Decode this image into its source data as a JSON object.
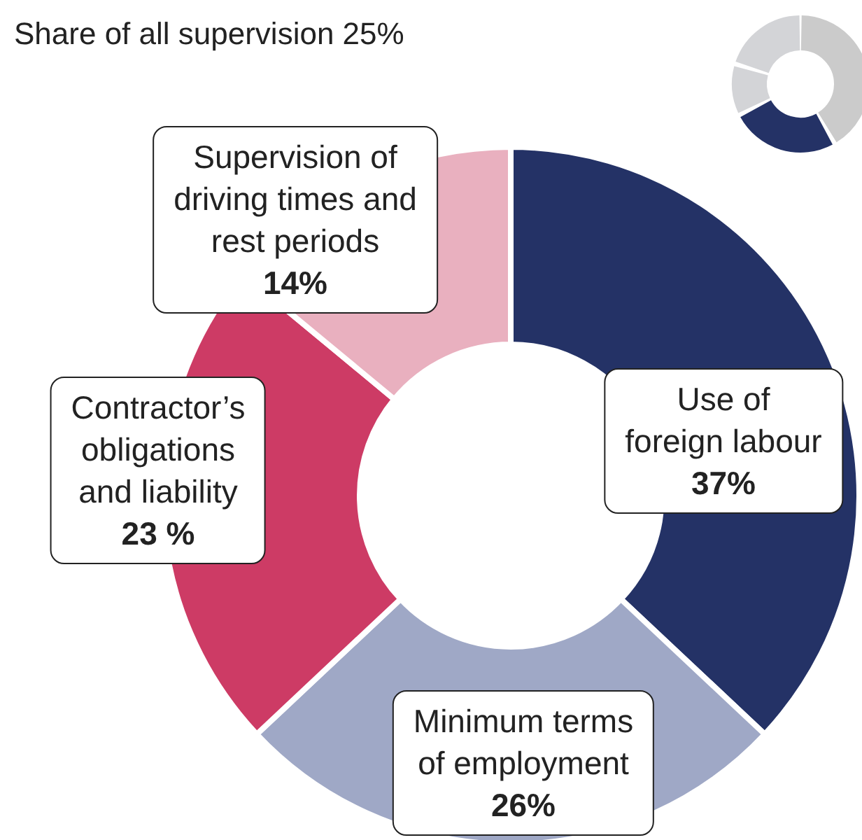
{
  "chart_data": {
    "type": "donut",
    "title": "Share of all supervision 25%",
    "categories": [
      "Use of\nforeign labour",
      "Minimum terms\nof employment",
      "Contractor’s\nobligations\nand liability",
      "Supervision of\ndriving times and\nrest periods"
    ],
    "values": [
      37,
      26,
      23,
      14
    ],
    "value_labels": [
      "37%",
      "26%",
      "23 %",
      "14%"
    ],
    "colors": [
      "#243266",
      "#9fa8c6",
      "#cd3b65",
      "#e9b0bf"
    ],
    "legend": false
  }
}
